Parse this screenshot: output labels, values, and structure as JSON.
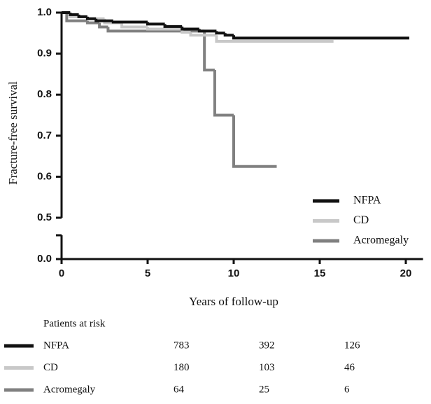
{
  "chart_data": {
    "type": "step",
    "ylabel": "Fracture-free survival",
    "xlabel": "Years of follow-up",
    "xlim": [
      0,
      21
    ],
    "xticks": [
      0,
      5,
      10,
      15,
      20
    ],
    "ylim": [
      0,
      1
    ],
    "y_break": [
      0,
      0.5
    ],
    "yticks": [
      {
        "value": 0,
        "label": "0.0"
      },
      0.5,
      0.6,
      0.7,
      0.8,
      0.9,
      {
        "value": 1,
        "label": "1.0"
      }
    ],
    "legend": "lower right",
    "series": [
      {
        "name": "NFPA",
        "color": "#111111",
        "x": [
          0,
          0.5,
          1,
          1.5,
          2,
          3,
          5,
          6,
          7,
          8,
          9,
          9.5,
          10,
          20.2
        ],
        "values": [
          1.0,
          0.995,
          0.99,
          0.985,
          0.98,
          0.977,
          0.972,
          0.966,
          0.96,
          0.955,
          0.95,
          0.945,
          0.938,
          0.938
        ]
      },
      {
        "name": "CD",
        "color": "#c8c8c8",
        "x": [
          0,
          0.5,
          1.5,
          2.5,
          3.5,
          5,
          7,
          7.5,
          9,
          15.8
        ],
        "values": [
          1.0,
          0.99,
          0.985,
          0.975,
          0.965,
          0.96,
          0.952,
          0.945,
          0.93,
          0.93
        ]
      },
      {
        "name": "Acromegaly",
        "color": "#808080",
        "x": [
          0,
          0.3,
          1.5,
          2.2,
          2.7,
          8.3,
          8.9,
          10,
          12.5
        ],
        "values": [
          1.0,
          0.98,
          0.975,
          0.965,
          0.955,
          0.86,
          0.75,
          0.625,
          0.625
        ]
      }
    ],
    "risk_table": {
      "title": "Patients at risk",
      "rows": [
        {
          "name": "NFPA",
          "counts": [
            783,
            392,
            126
          ]
        },
        {
          "name": "CD",
          "counts": [
            180,
            103,
            46
          ]
        },
        {
          "name": "Acromegaly",
          "counts": [
            64,
            25,
            6
          ]
        }
      ]
    }
  }
}
